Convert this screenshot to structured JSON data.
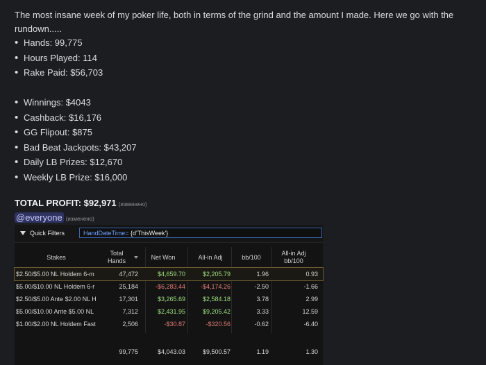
{
  "intro": "The most insane week of my poker life, both in terms of the grind and the amount I made. Here we go with the rundown.....",
  "stats": [
    "Hands: 99,775",
    "Hours Played: 114",
    "Rake Paid: $56,703"
  ],
  "earnings": [
    "Winnings: $4043",
    "Cashback: $16,176",
    "GG Flipout: $875",
    "Bad Beat Jackpots: $43,207",
    "Daily LB Prizes: $12,670",
    "Weekly LB Prize: $16,000"
  ],
  "total_profit": "TOTAL PROFIT: $92,971",
  "edited_label": "(изменено)",
  "mention": "@everyone",
  "screenshot": {
    "quick_filters_label": "Quick Filters",
    "filter_key": "HandDateTime=",
    "filter_value": "{d'ThisWeek'}",
    "headers": {
      "stakes": "Stakes",
      "total_hands": "Total Hands",
      "net_won": "Net Won",
      "allin_adj": "All-in Adj",
      "bb100": "bb/100",
      "allin_adj_bb100": "All-in Adj bb/100"
    },
    "rows": [
      {
        "stakes": "$2.50/$5.00 NL Holdem 6-m",
        "hands": "47,472",
        "net": "$4,659.70",
        "net_sign": "pos",
        "adj": "$2,205.79",
        "adj_sign": "pos",
        "bb": "1.96",
        "bb_sign": "pos",
        "adjbb": "0.93",
        "adjbb_sign": "pos"
      },
      {
        "stakes": "$5.00/$10.00 NL Holdem 6-r",
        "hands": "25,184",
        "net": "-$6,283.44",
        "net_sign": "neg",
        "adj": "-$4,174.26",
        "adj_sign": "neg",
        "bb": "-2.50",
        "bb_sign": "neg",
        "adjbb": "-1.66",
        "adjbb_sign": "neg"
      },
      {
        "stakes": "$2.50/$5.00 Ante $2.00 NL H",
        "hands": "17,301",
        "net": "$3,265.69",
        "net_sign": "pos",
        "adj": "$2,584.18",
        "adj_sign": "pos",
        "bb": "3.78",
        "bb_sign": "pos",
        "adjbb": "2.99",
        "adjbb_sign": "pos"
      },
      {
        "stakes": "$5.00/$10.00 Ante $5.00 NL",
        "hands": "7,312",
        "net": "$2,431.95",
        "net_sign": "pos",
        "adj": "$9,205.42",
        "adj_sign": "pos",
        "bb": "3.33",
        "bb_sign": "pos",
        "adjbb": "12.59",
        "adjbb_sign": "pos"
      },
      {
        "stakes": "$1.00/$2.00 NL Holdem Fast",
        "hands": "2,506",
        "net": "-$30.87",
        "net_sign": "neg",
        "adj": "-$320.56",
        "adj_sign": "neg",
        "bb": "-0.62",
        "bb_sign": "neg",
        "adjbb": "-6.40",
        "adjbb_sign": "neg"
      }
    ],
    "totals": {
      "hands": "99,775",
      "net": "$4,043.03",
      "adj": "$9,500.57",
      "bb": "1.19",
      "adjbb": "1.30"
    }
  }
}
